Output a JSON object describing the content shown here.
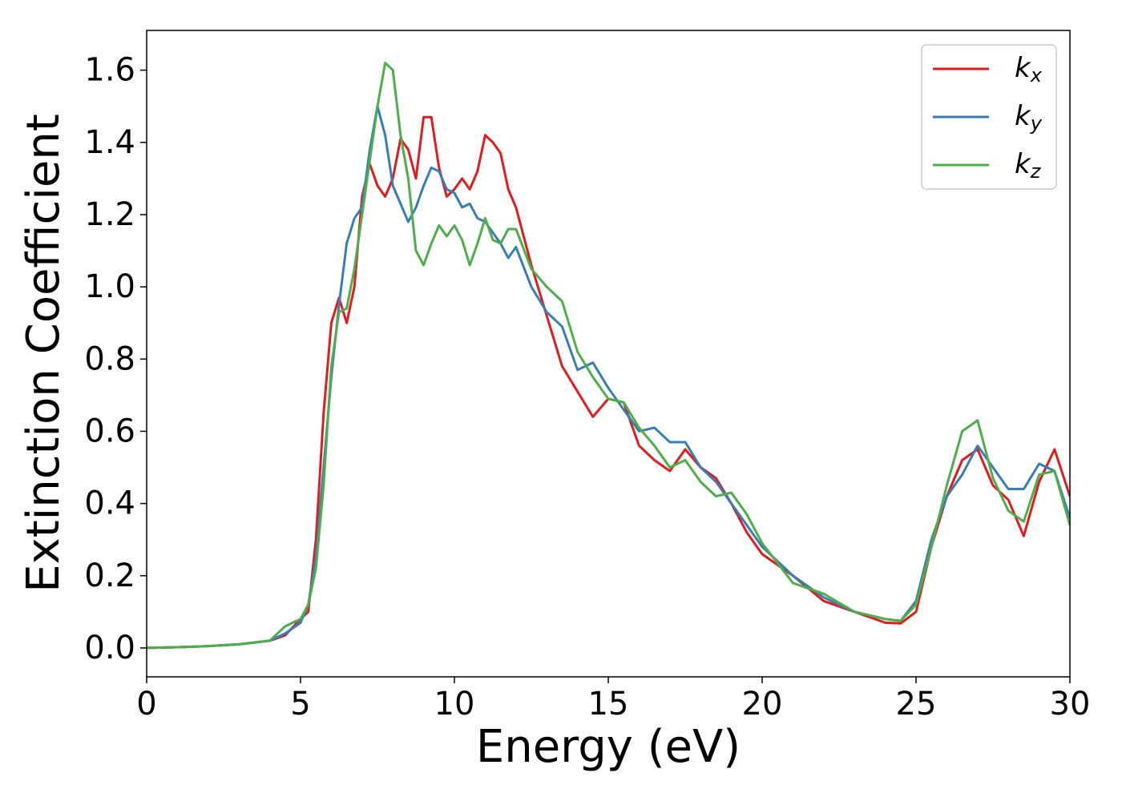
{
  "chart_data": {
    "type": "line",
    "xlabel": "Energy (eV)",
    "ylabel": "Extinction Coefficient",
    "x": [
      0,
      1,
      2,
      3,
      4,
      4.5,
      5,
      5.25,
      5.5,
      5.75,
      6,
      6.25,
      6.5,
      6.75,
      7,
      7.25,
      7.5,
      7.75,
      8,
      8.25,
      8.5,
      8.75,
      9,
      9.25,
      9.5,
      9.75,
      10,
      10.25,
      10.5,
      10.75,
      11,
      11.25,
      11.5,
      11.75,
      12,
      12.5,
      13,
      13.5,
      14,
      14.5,
      15,
      15.5,
      16,
      16.5,
      17,
      17.5,
      18,
      18.5,
      19,
      19.5,
      20,
      21,
      22,
      23,
      24,
      24.5,
      25,
      25.5,
      26,
      26.5,
      27,
      27.5,
      28,
      28.5,
      29,
      29.5,
      30
    ],
    "series": [
      {
        "name": "kx",
        "color": "#e41a1c",
        "values": [
          0,
          0.002,
          0.005,
          0.01,
          0.02,
          0.035,
          0.08,
          0.1,
          0.3,
          0.65,
          0.9,
          0.97,
          0.9,
          1.0,
          1.25,
          1.34,
          1.28,
          1.25,
          1.3,
          1.41,
          1.38,
          1.3,
          1.47,
          1.47,
          1.33,
          1.25,
          1.27,
          1.3,
          1.27,
          1.32,
          1.42,
          1.4,
          1.37,
          1.27,
          1.22,
          1.06,
          0.92,
          0.78,
          0.71,
          0.64,
          0.69,
          0.68,
          0.56,
          0.52,
          0.49,
          0.55,
          0.5,
          0.47,
          0.4,
          0.32,
          0.26,
          0.2,
          0.13,
          0.1,
          0.07,
          0.068,
          0.1,
          0.28,
          0.42,
          0.52,
          0.55,
          0.45,
          0.41,
          0.31,
          0.46,
          0.55,
          0.42
        ]
      },
      {
        "name": "ky",
        "color": "#377eb8",
        "values": [
          0,
          0.002,
          0.005,
          0.01,
          0.02,
          0.04,
          0.07,
          0.12,
          0.25,
          0.5,
          0.75,
          0.95,
          1.12,
          1.19,
          1.22,
          1.38,
          1.5,
          1.42,
          1.28,
          1.23,
          1.18,
          1.22,
          1.28,
          1.33,
          1.32,
          1.27,
          1.26,
          1.22,
          1.23,
          1.19,
          1.18,
          1.15,
          1.12,
          1.08,
          1.11,
          1.0,
          0.93,
          0.89,
          0.77,
          0.79,
          0.72,
          0.66,
          0.6,
          0.61,
          0.57,
          0.57,
          0.5,
          0.46,
          0.4,
          0.34,
          0.28,
          0.2,
          0.14,
          0.1,
          0.08,
          0.075,
          0.13,
          0.3,
          0.42,
          0.48,
          0.56,
          0.5,
          0.44,
          0.44,
          0.51,
          0.49,
          0.36
        ]
      },
      {
        "name": "kz",
        "color": "#4daf4a",
        "values": [
          0,
          0.002,
          0.005,
          0.01,
          0.02,
          0.06,
          0.08,
          0.12,
          0.22,
          0.45,
          0.78,
          0.93,
          0.94,
          1.05,
          1.2,
          1.35,
          1.5,
          1.62,
          1.6,
          1.42,
          1.3,
          1.1,
          1.06,
          1.12,
          1.17,
          1.14,
          1.17,
          1.13,
          1.06,
          1.12,
          1.19,
          1.13,
          1.12,
          1.16,
          1.16,
          1.05,
          1.0,
          0.96,
          0.82,
          0.75,
          0.69,
          0.68,
          0.61,
          0.56,
          0.5,
          0.52,
          0.46,
          0.42,
          0.43,
          0.37,
          0.29,
          0.18,
          0.15,
          0.1,
          0.08,
          0.075,
          0.12,
          0.28,
          0.45,
          0.6,
          0.63,
          0.47,
          0.38,
          0.35,
          0.48,
          0.49,
          0.34
        ]
      }
    ],
    "xlim": [
      0,
      30
    ],
    "xticks": [
      0,
      5,
      10,
      15,
      20,
      25,
      30
    ],
    "ylim": [
      -0.08,
      1.71
    ],
    "yticks": [
      {
        "value": 0,
        "label": "0.0"
      },
      {
        "value": 0.2,
        "label": "0.2"
      },
      {
        "value": 0.4,
        "label": "0.4"
      },
      {
        "value": 0.6,
        "label": "0.6"
      },
      {
        "value": 0.8,
        "label": "0.8"
      },
      {
        "value": 1.0,
        "label": "1.0"
      },
      {
        "value": 1.2,
        "label": "1.2"
      },
      {
        "value": 1.4,
        "label": "1.4"
      },
      {
        "value": 1.6,
        "label": "1.6"
      }
    ],
    "grid": false,
    "legend": "upper right"
  }
}
